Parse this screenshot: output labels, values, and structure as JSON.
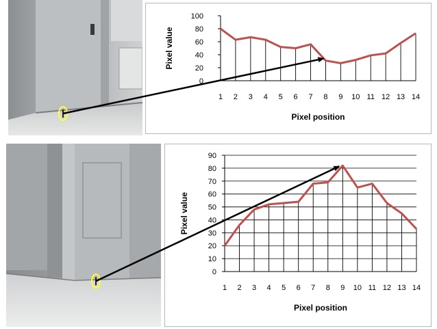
{
  "colors": {
    "series_line": "#c0504d",
    "grid": "#000000",
    "marker": "#ffff33",
    "arrow": "#000000"
  },
  "chart_data": [
    {
      "type": "line",
      "title": "",
      "xlabel": "Pixel position",
      "ylabel": "Pixel value",
      "ylim": [
        0,
        100
      ],
      "ytick_step": 20,
      "categories": [
        "1",
        "2",
        "3",
        "4",
        "5",
        "6",
        "7",
        "8",
        "9",
        "10",
        "11",
        "12",
        "13",
        "14"
      ],
      "series": [
        {
          "values": [
            80,
            63,
            67,
            63,
            52,
            50,
            56,
            31,
            27,
            32,
            39,
            42,
            58,
            73
          ]
        }
      ],
      "grid": "vertical drop lines at each point",
      "legend": "none"
    },
    {
      "type": "line",
      "title": "",
      "xlabel": "Pixel  position",
      "ylabel": "Pixel value",
      "ylim": [
        0,
        90
      ],
      "ytick_step": 10,
      "categories": [
        "1",
        "2",
        "3",
        "4",
        "5",
        "6",
        "7",
        "8",
        "9",
        "10",
        "11",
        "12",
        "13",
        "14"
      ],
      "series": [
        {
          "values": [
            20,
            36,
            48,
            52,
            53,
            54,
            68,
            69,
            82,
            65,
            68,
            53,
            45,
            33
          ]
        }
      ],
      "grid": "horizontal gridlines and vertical drop lines",
      "legend": "none"
    }
  ]
}
